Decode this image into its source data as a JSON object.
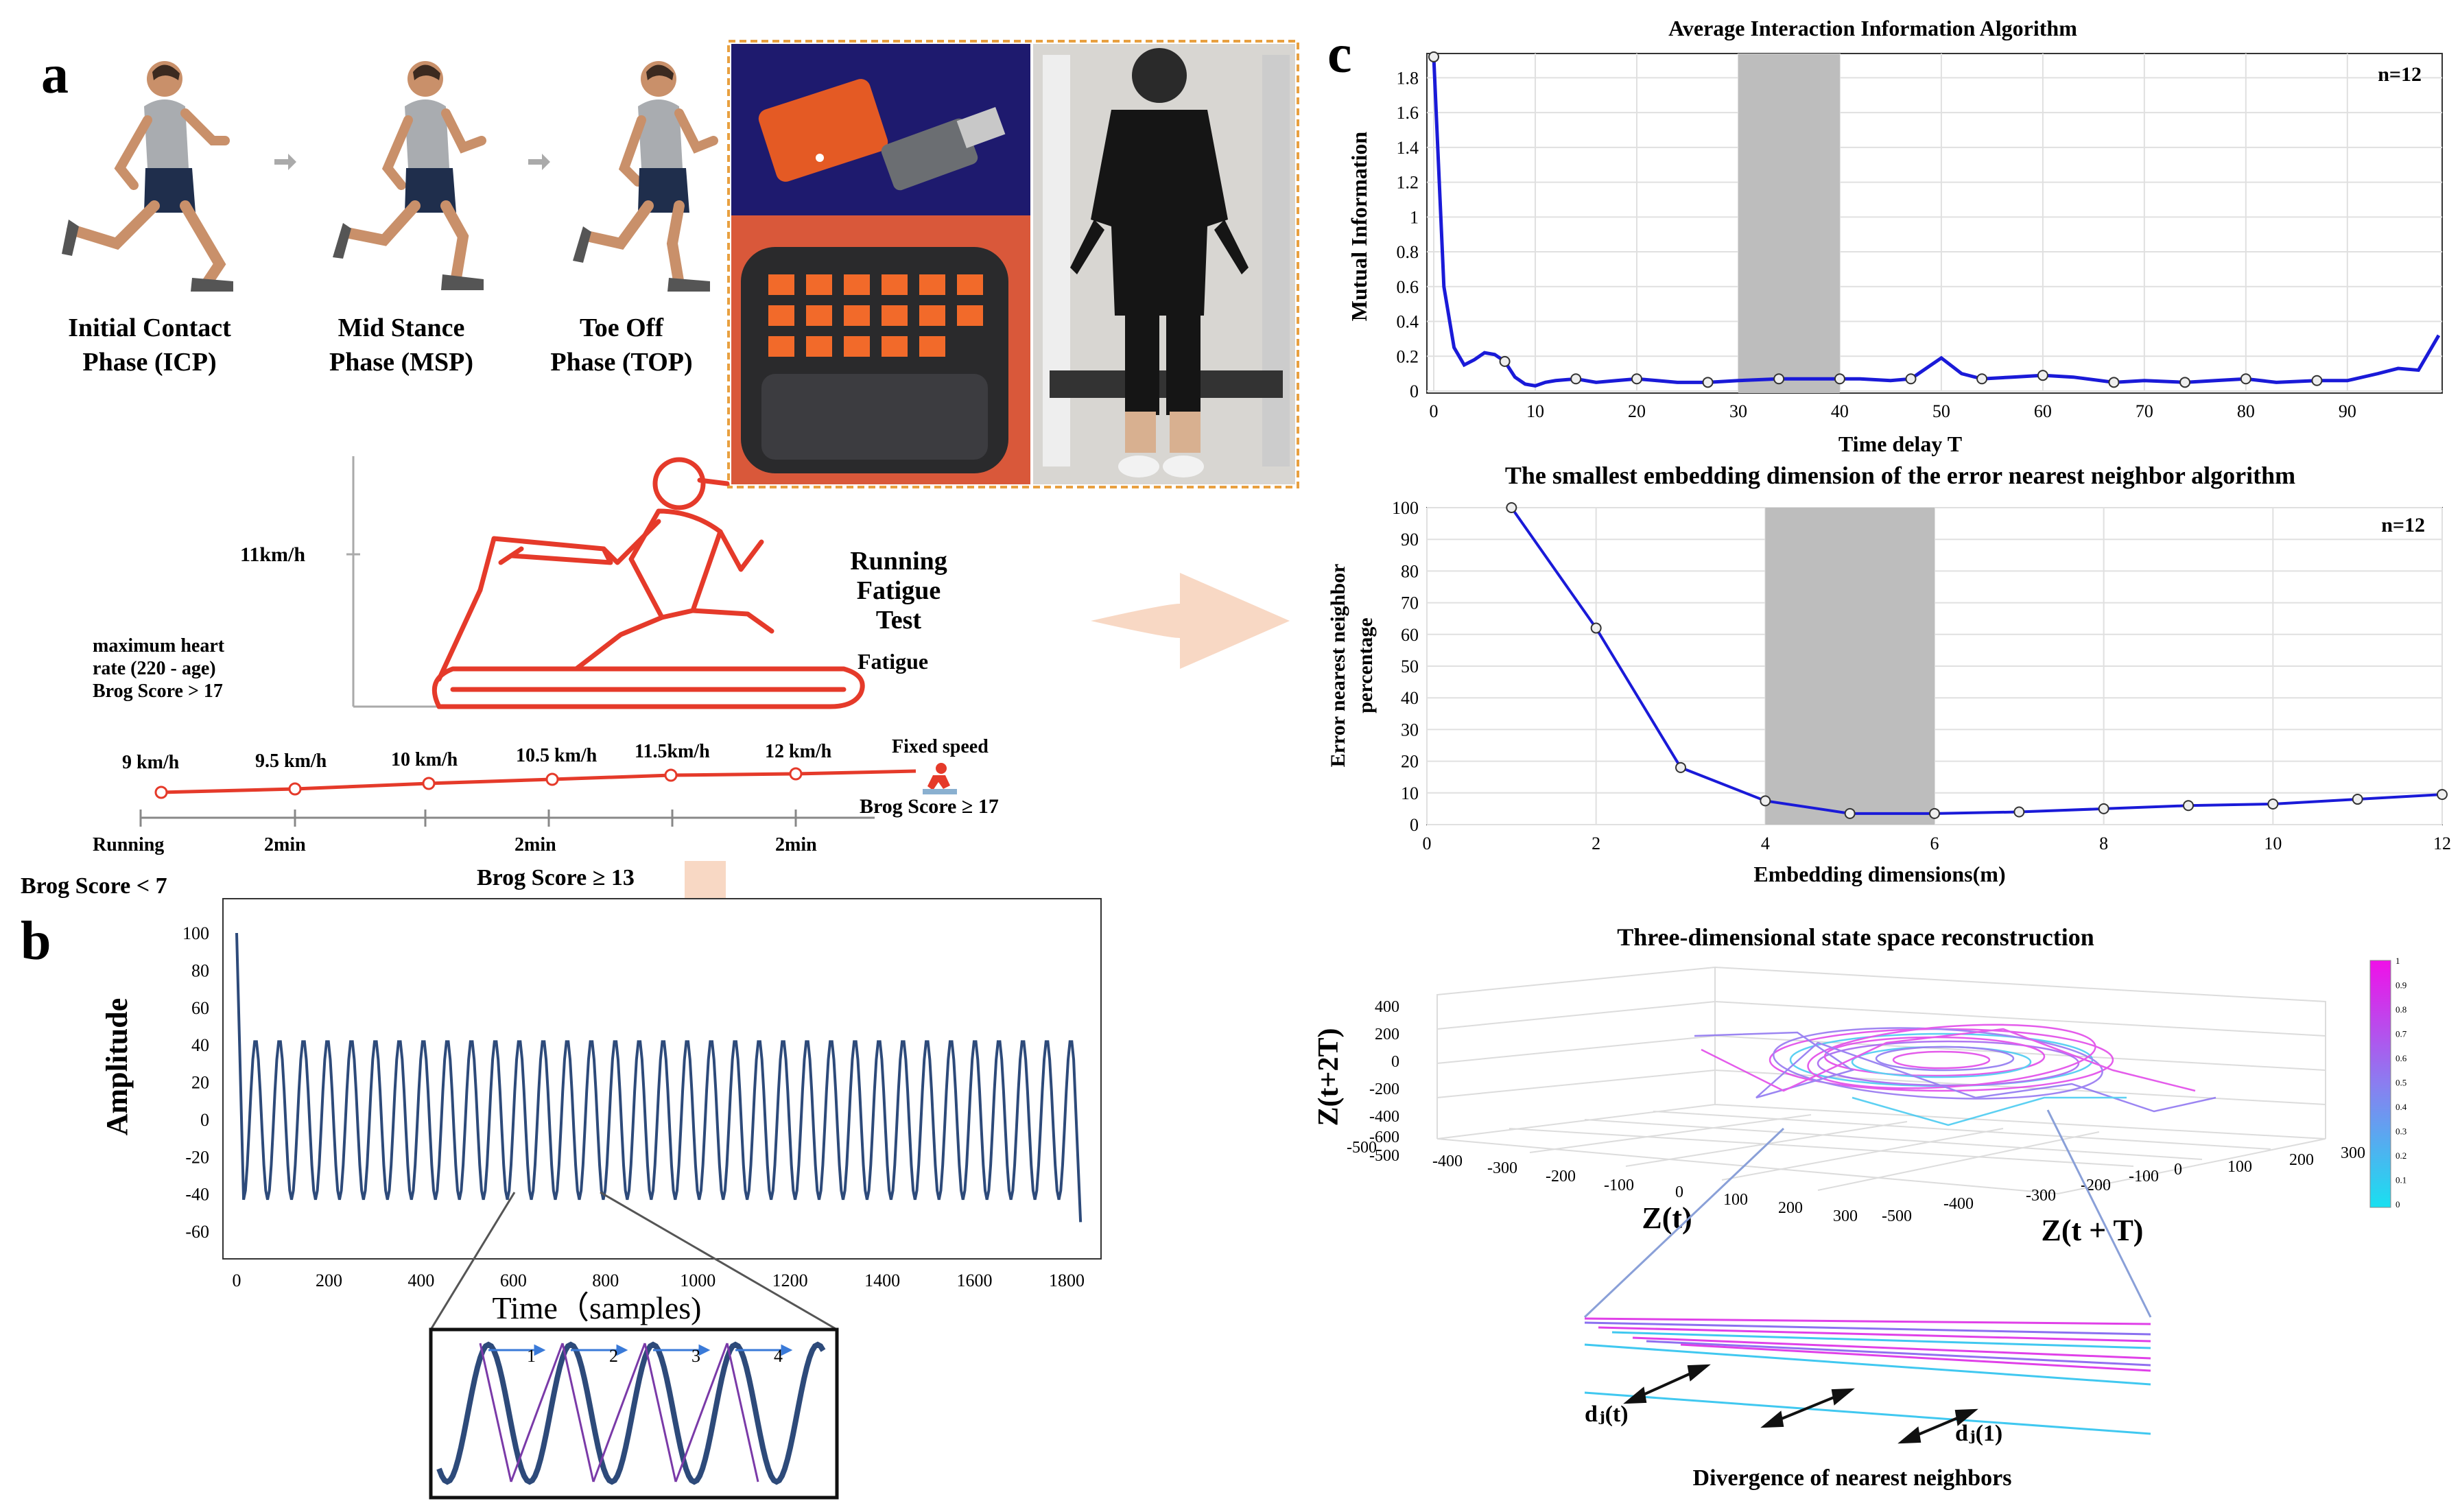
{
  "panel_labels": {
    "a": "a",
    "b": "b",
    "c": "c"
  },
  "phases": [
    {
      "line1": "Initial Contact",
      "line2": "Phase (ICP)"
    },
    {
      "line1": "Mid Stance",
      "line2": "Phase (MSP)"
    },
    {
      "line1": "Toe Off",
      "line2": "Phase (TOP)"
    }
  ],
  "treadmill": {
    "speed_label": "11km/h",
    "test_title": [
      "Running",
      "Fatigue",
      "Test"
    ],
    "fatigue_label": "Fatigue",
    "heart_rate_note": [
      "maximum heart",
      "rate (220 - age)",
      "Brog Score > 17"
    ]
  },
  "protocol": {
    "speeds": [
      "9 km/h",
      "9.5 km/h",
      "10 km/h",
      "10.5 km/h",
      "11.5km/h",
      "12 km/h"
    ],
    "fixed_speed": "Fixed speed",
    "stop_score": "Brog Score ≥ 17",
    "phase_labels": [
      "Running",
      "2min",
      "2min",
      "2min"
    ],
    "start_score": "Brog Score < 7",
    "mid_score": "Brog Score ≥ 13"
  },
  "signal_plot": {
    "ylabel": "Amplitude",
    "xlabel": "Time（samples)",
    "yticks": [
      "100",
      "80",
      "60",
      "40",
      "20",
      "0",
      "-20",
      "-40",
      "-60"
    ],
    "xticks": [
      "0",
      "200",
      "400",
      "600",
      "800",
      "1000",
      "1200",
      "1400",
      "1600",
      "1800"
    ],
    "zoom_labels": [
      "1",
      "2",
      "3",
      "4"
    ]
  },
  "mi_plot": {
    "title": "Average Interaction Information Algorithm",
    "ylabel": "Mutual Information",
    "xlabel": "Time delay T",
    "n_label": "n=12",
    "yticks": [
      "1.8",
      "1.6",
      "1.4",
      "1.2",
      "1",
      "0.8",
      "0.6",
      "0.4",
      "0.2",
      "0"
    ],
    "xticks": [
      "0",
      "10",
      "20",
      "30",
      "40",
      "50",
      "60",
      "70",
      "80",
      "90"
    ]
  },
  "fnn_plot": {
    "title": "The smallest embedding dimension of the error nearest neighbor algorithm",
    "ylabel1": "Error nearest neighbor",
    "ylabel2": "percentage",
    "xlabel": "Embedding dimensions(m)",
    "n_label": "n=12",
    "yticks": [
      "100",
      "90",
      "80",
      "70",
      "60",
      "50",
      "40",
      "30",
      "20",
      "10",
      "0"
    ],
    "xticks": [
      "0",
      "2",
      "4",
      "6",
      "8",
      "10",
      "12"
    ]
  },
  "phase_space": {
    "title": "Three-dimensional state space reconstruction",
    "zlabel": "Z(t+2T)",
    "xlabel": "Z(t)",
    "ylabel": "Z(t + T)",
    "zticks": [
      "400",
      "200",
      "0",
      "-200",
      "-400",
      "-600"
    ],
    "xticks": [
      "-500",
      "-400",
      "-300",
      "-200",
      "-100",
      "0",
      "100",
      "200",
      "300"
    ],
    "yticks": [
      "-500",
      "-400",
      "-300",
      "-200",
      "-100",
      "0",
      "100",
      "200",
      "300"
    ],
    "colorbar_ticks": [
      "1",
      "0.9",
      "0.8",
      "0.7",
      "0.6",
      "0.5",
      "0.4",
      "0.3",
      "0.2",
      "0.1",
      "0"
    ],
    "divergence_title": "Divergence of nearest neighbors",
    "dj_t": "dⱼ(t)",
    "dj_1": "dⱼ(1)"
  },
  "chart_data": [
    {
      "type": "line",
      "title": "",
      "xlabel": "Time（samples)",
      "ylabel": "Amplitude",
      "xlim": [
        0,
        1850
      ],
      "ylim": [
        -60,
        100
      ],
      "start": {
        "x": 0,
        "y": 100
      },
      "amplitude": 43,
      "period": 52,
      "end": {
        "x": 1830,
        "y": -55
      }
    },
    {
      "type": "line",
      "title": "Average Interaction Information Algorithm",
      "xlabel": "Time delay T",
      "ylabel": "Mutual Information",
      "xlim": [
        0,
        99
      ],
      "ylim": [
        0,
        1.9
      ],
      "shaded": [
        30,
        40
      ],
      "x": [
        0,
        1,
        2,
        3,
        4,
        5,
        6,
        7,
        8,
        9,
        10,
        11,
        12,
        14,
        16,
        18,
        20,
        22,
        24,
        27,
        30,
        34,
        38,
        42,
        45,
        47,
        49,
        50,
        52,
        54,
        57,
        60,
        63,
        67,
        70,
        74,
        77,
        80,
        83,
        87,
        90,
        93,
        95,
        97,
        99
      ],
      "y": [
        1.92,
        0.6,
        0.25,
        0.15,
        0.18,
        0.22,
        0.21,
        0.17,
        0.08,
        0.04,
        0.03,
        0.05,
        0.06,
        0.07,
        0.05,
        0.06,
        0.07,
        0.06,
        0.05,
        0.05,
        0.06,
        0.07,
        0.07,
        0.07,
        0.06,
        0.07,
        0.15,
        0.19,
        0.1,
        0.07,
        0.08,
        0.09,
        0.08,
        0.05,
        0.06,
        0.05,
        0.06,
        0.07,
        0.05,
        0.06,
        0.06,
        0.1,
        0.13,
        0.12,
        0.32
      ]
    },
    {
      "type": "line",
      "title": "The smallest embedding dimension of the error nearest neighbor algorithm",
      "xlabel": "Embedding dimensions(m)",
      "ylabel": "Error nearest neighbor percentage",
      "xlim": [
        0,
        12
      ],
      "ylim": [
        0,
        100
      ],
      "shaded": [
        4,
        6
      ],
      "x": [
        1,
        2,
        3,
        4,
        5,
        6,
        7,
        8,
        9,
        10,
        11,
        12
      ],
      "y": [
        100,
        62,
        18,
        7.5,
        3.5,
        3.5,
        4,
        5,
        6,
        6.5,
        8,
        9.5
      ]
    }
  ]
}
